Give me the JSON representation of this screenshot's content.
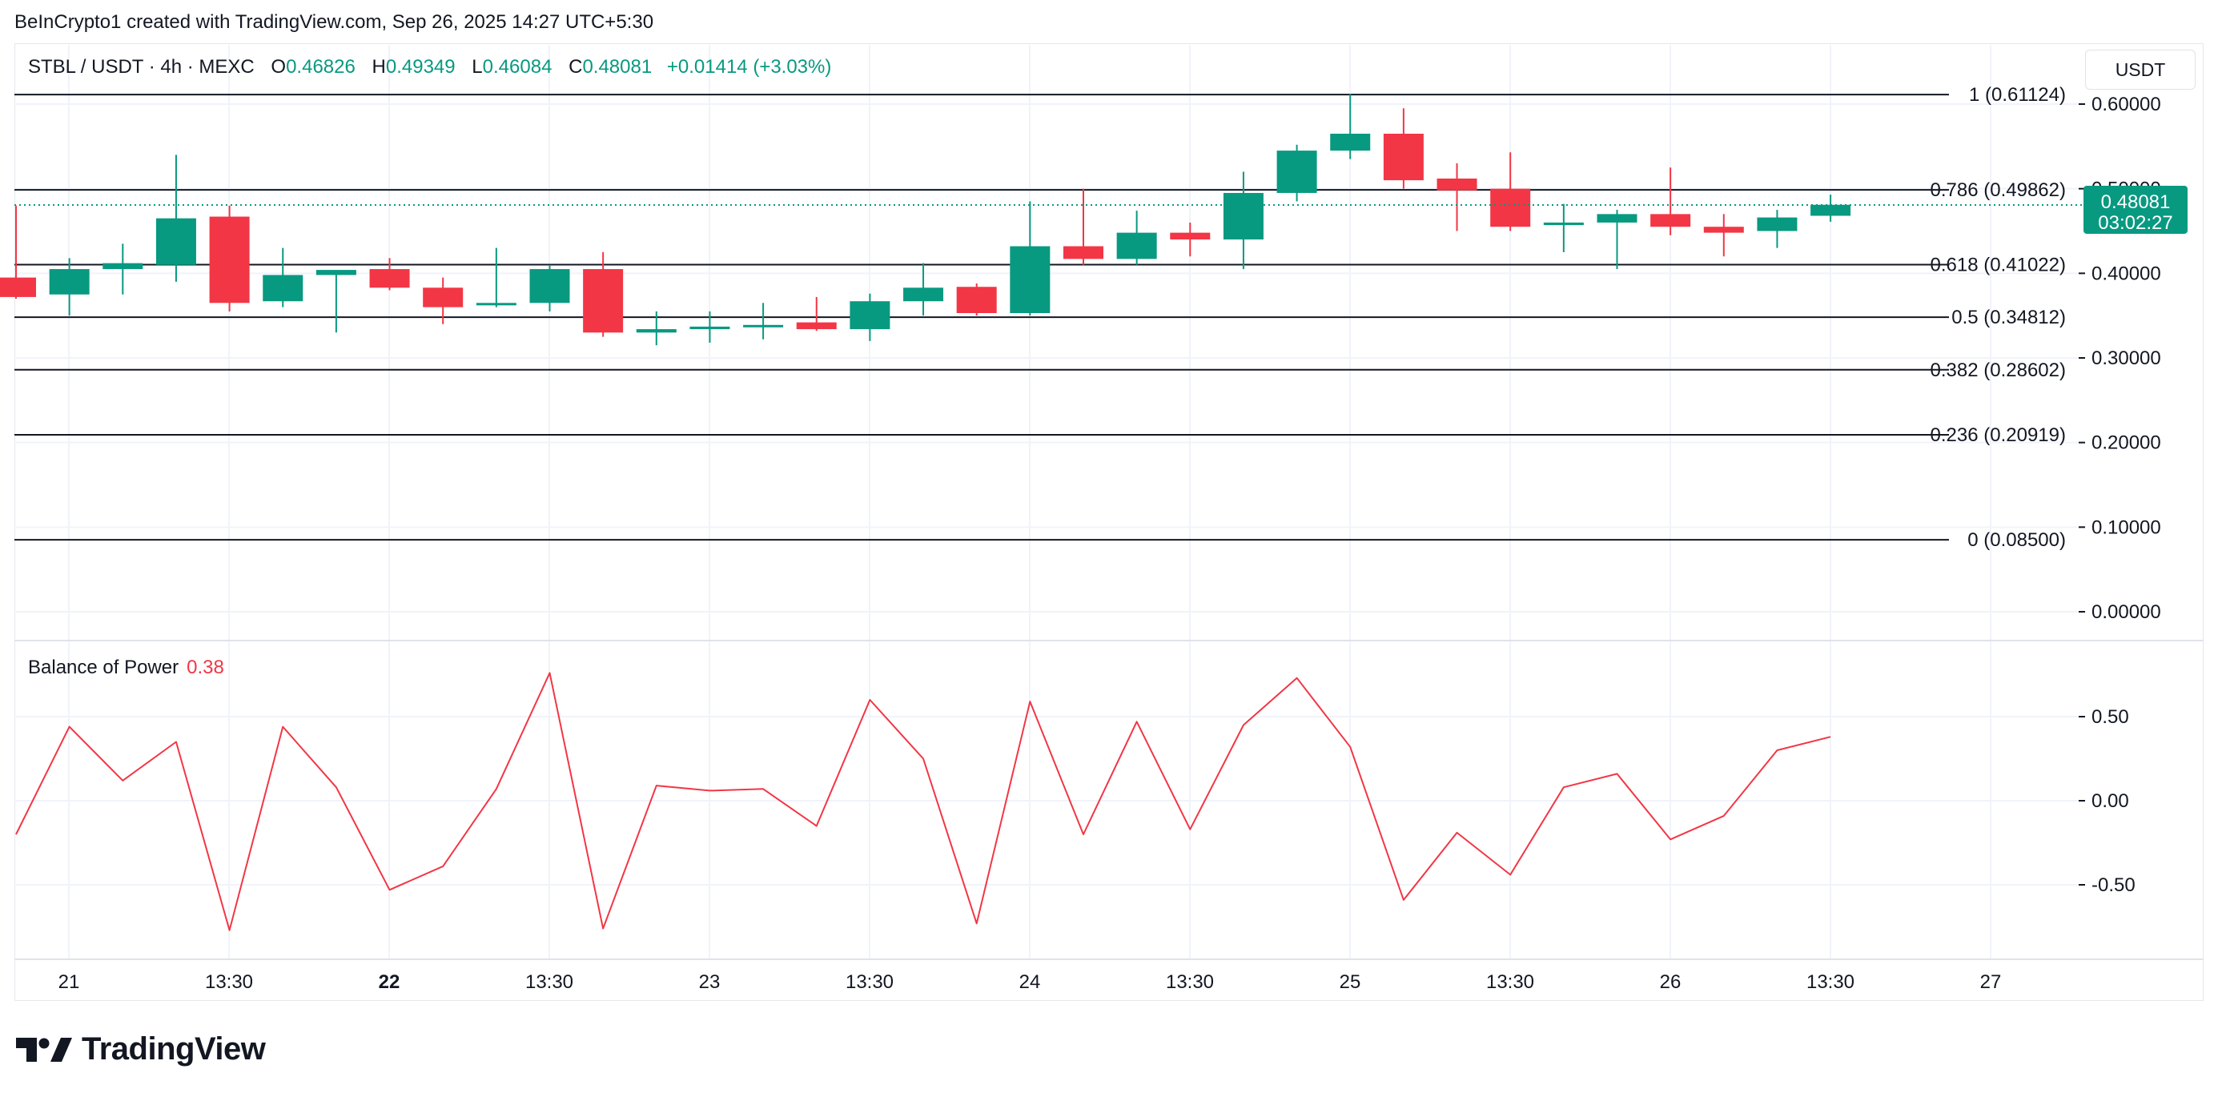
{
  "header": {
    "credit": "BeInCrypto1 created with TradingView.com, Sep 26, 2025 14:27 UTC+5:30"
  },
  "legend": {
    "symbol": "STBL / USDT · 4h · MEXC",
    "o_label": "O",
    "o_value": "0.46826",
    "h_label": "H",
    "h_value": "0.49349",
    "l_label": "L",
    "l_value": "0.46084",
    "c_label": "C",
    "c_value": "0.48081",
    "change": "+0.01414 (+3.03%)"
  },
  "currency": "USDT",
  "price_tag": {
    "price": "0.48081",
    "countdown": "03:02:27"
  },
  "bop_legend": {
    "name": "Balance of Power",
    "value": "0.38"
  },
  "brand": {
    "name": "TradingView",
    "logo_icon": "tradingview-logo-icon"
  },
  "colors": {
    "up": "#089981",
    "down": "#f23645",
    "line": "#f23645",
    "fib": "#131722",
    "grid": "#f0f3fa"
  },
  "chart_data": [
    {
      "type": "candlestick",
      "title": "STBL / USDT · 4h · MEXC",
      "y_unit": "USDT",
      "ylim": [
        0.0,
        0.6
      ],
      "y_ticks": [
        "0.60000",
        "0.50000",
        "0.40000",
        "0.30000",
        "0.20000",
        "0.10000",
        "0.00000"
      ],
      "x_ticks": [
        "21",
        "13:30",
        "22",
        "13:30",
        "23",
        "13:30",
        "24",
        "13:30",
        "25",
        "13:30",
        "26",
        "13:30",
        "27"
      ],
      "fib_levels": [
        {
          "ratio": "1",
          "price": 0.61124,
          "label": "1 (0.61124)"
        },
        {
          "ratio": "0.786",
          "price": 0.49862,
          "label": "0.786 (0.49862)"
        },
        {
          "ratio": "0.618",
          "price": 0.41022,
          "label": "0.618 (0.41022)"
        },
        {
          "ratio": "0.5",
          "price": 0.34812,
          "label": "0.5 (0.34812)"
        },
        {
          "ratio": "0.382",
          "price": 0.28602,
          "label": "0.382 (0.28602)"
        },
        {
          "ratio": "0.236",
          "price": 0.20919,
          "label": "0.236 (0.20919)"
        },
        {
          "ratio": "0",
          "price": 0.085,
          "label": "0 (0.08500)"
        }
      ],
      "last_price": 0.48081,
      "candles": [
        {
          "o": 0.395,
          "h": 0.48,
          "l": 0.37,
          "c": 0.372
        },
        {
          "o": 0.375,
          "h": 0.418,
          "l": 0.35,
          "c": 0.405
        },
        {
          "o": 0.405,
          "h": 0.435,
          "l": 0.375,
          "c": 0.412
        },
        {
          "o": 0.41,
          "h": 0.54,
          "l": 0.39,
          "c": 0.465
        },
        {
          "o": 0.467,
          "h": 0.48,
          "l": 0.355,
          "c": 0.365
        },
        {
          "o": 0.367,
          "h": 0.43,
          "l": 0.36,
          "c": 0.398
        },
        {
          "o": 0.398,
          "h": 0.402,
          "l": 0.33,
          "c": 0.404
        },
        {
          "o": 0.405,
          "h": 0.418,
          "l": 0.38,
          "c": 0.383
        },
        {
          "o": 0.383,
          "h": 0.395,
          "l": 0.34,
          "c": 0.36
        },
        {
          "o": 0.363,
          "h": 0.43,
          "l": 0.36,
          "c": 0.365
        },
        {
          "o": 0.365,
          "h": 0.41,
          "l": 0.355,
          "c": 0.405
        },
        {
          "o": 0.405,
          "h": 0.425,
          "l": 0.325,
          "c": 0.33
        },
        {
          "o": 0.33,
          "h": 0.355,
          "l": 0.315,
          "c": 0.334
        },
        {
          "o": 0.334,
          "h": 0.355,
          "l": 0.318,
          "c": 0.337
        },
        {
          "o": 0.337,
          "h": 0.365,
          "l": 0.322,
          "c": 0.339
        },
        {
          "o": 0.342,
          "h": 0.372,
          "l": 0.332,
          "c": 0.334
        },
        {
          "o": 0.334,
          "h": 0.376,
          "l": 0.32,
          "c": 0.367
        },
        {
          "o": 0.367,
          "h": 0.412,
          "l": 0.35,
          "c": 0.383
        },
        {
          "o": 0.384,
          "h": 0.388,
          "l": 0.35,
          "c": 0.353
        },
        {
          "o": 0.353,
          "h": 0.485,
          "l": 0.35,
          "c": 0.432
        },
        {
          "o": 0.432,
          "h": 0.5,
          "l": 0.41,
          "c": 0.417
        },
        {
          "o": 0.417,
          "h": 0.474,
          "l": 0.41,
          "c": 0.448
        },
        {
          "o": 0.448,
          "h": 0.46,
          "l": 0.42,
          "c": 0.44
        },
        {
          "o": 0.44,
          "h": 0.52,
          "l": 0.405,
          "c": 0.495
        },
        {
          "o": 0.495,
          "h": 0.552,
          "l": 0.485,
          "c": 0.545
        },
        {
          "o": 0.545,
          "h": 0.612,
          "l": 0.535,
          "c": 0.565
        },
        {
          "o": 0.565,
          "h": 0.595,
          "l": 0.5,
          "c": 0.51
        },
        {
          "o": 0.512,
          "h": 0.53,
          "l": 0.45,
          "c": 0.498
        },
        {
          "o": 0.5,
          "h": 0.543,
          "l": 0.45,
          "c": 0.455
        },
        {
          "o": 0.457,
          "h": 0.482,
          "l": 0.425,
          "c": 0.46
        },
        {
          "o": 0.46,
          "h": 0.475,
          "l": 0.405,
          "c": 0.47
        },
        {
          "o": 0.47,
          "h": 0.525,
          "l": 0.445,
          "c": 0.455
        },
        {
          "o": 0.455,
          "h": 0.47,
          "l": 0.42,
          "c": 0.448
        },
        {
          "o": 0.45,
          "h": 0.475,
          "l": 0.43,
          "c": 0.466
        },
        {
          "o": 0.468,
          "h": 0.493,
          "l": 0.461,
          "c": 0.481
        }
      ]
    },
    {
      "type": "line",
      "title": "Balance of Power",
      "ylim": [
        -0.85,
        0.85
      ],
      "y_ticks": [
        "0.50",
        "0.00",
        "-0.50"
      ],
      "last_value": 0.38,
      "values": [
        -0.2,
        0.44,
        0.12,
        0.35,
        -0.77,
        0.44,
        0.08,
        -0.53,
        -0.39,
        0.07,
        0.76,
        -0.76,
        0.09,
        0.06,
        0.07,
        -0.15,
        0.6,
        0.25,
        -0.73,
        0.59,
        -0.2,
        0.47,
        -0.17,
        0.45,
        0.73,
        0.32,
        -0.59,
        -0.19,
        -0.44,
        0.08,
        0.16,
        -0.23,
        -0.09,
        0.3,
        0.38
      ]
    }
  ]
}
